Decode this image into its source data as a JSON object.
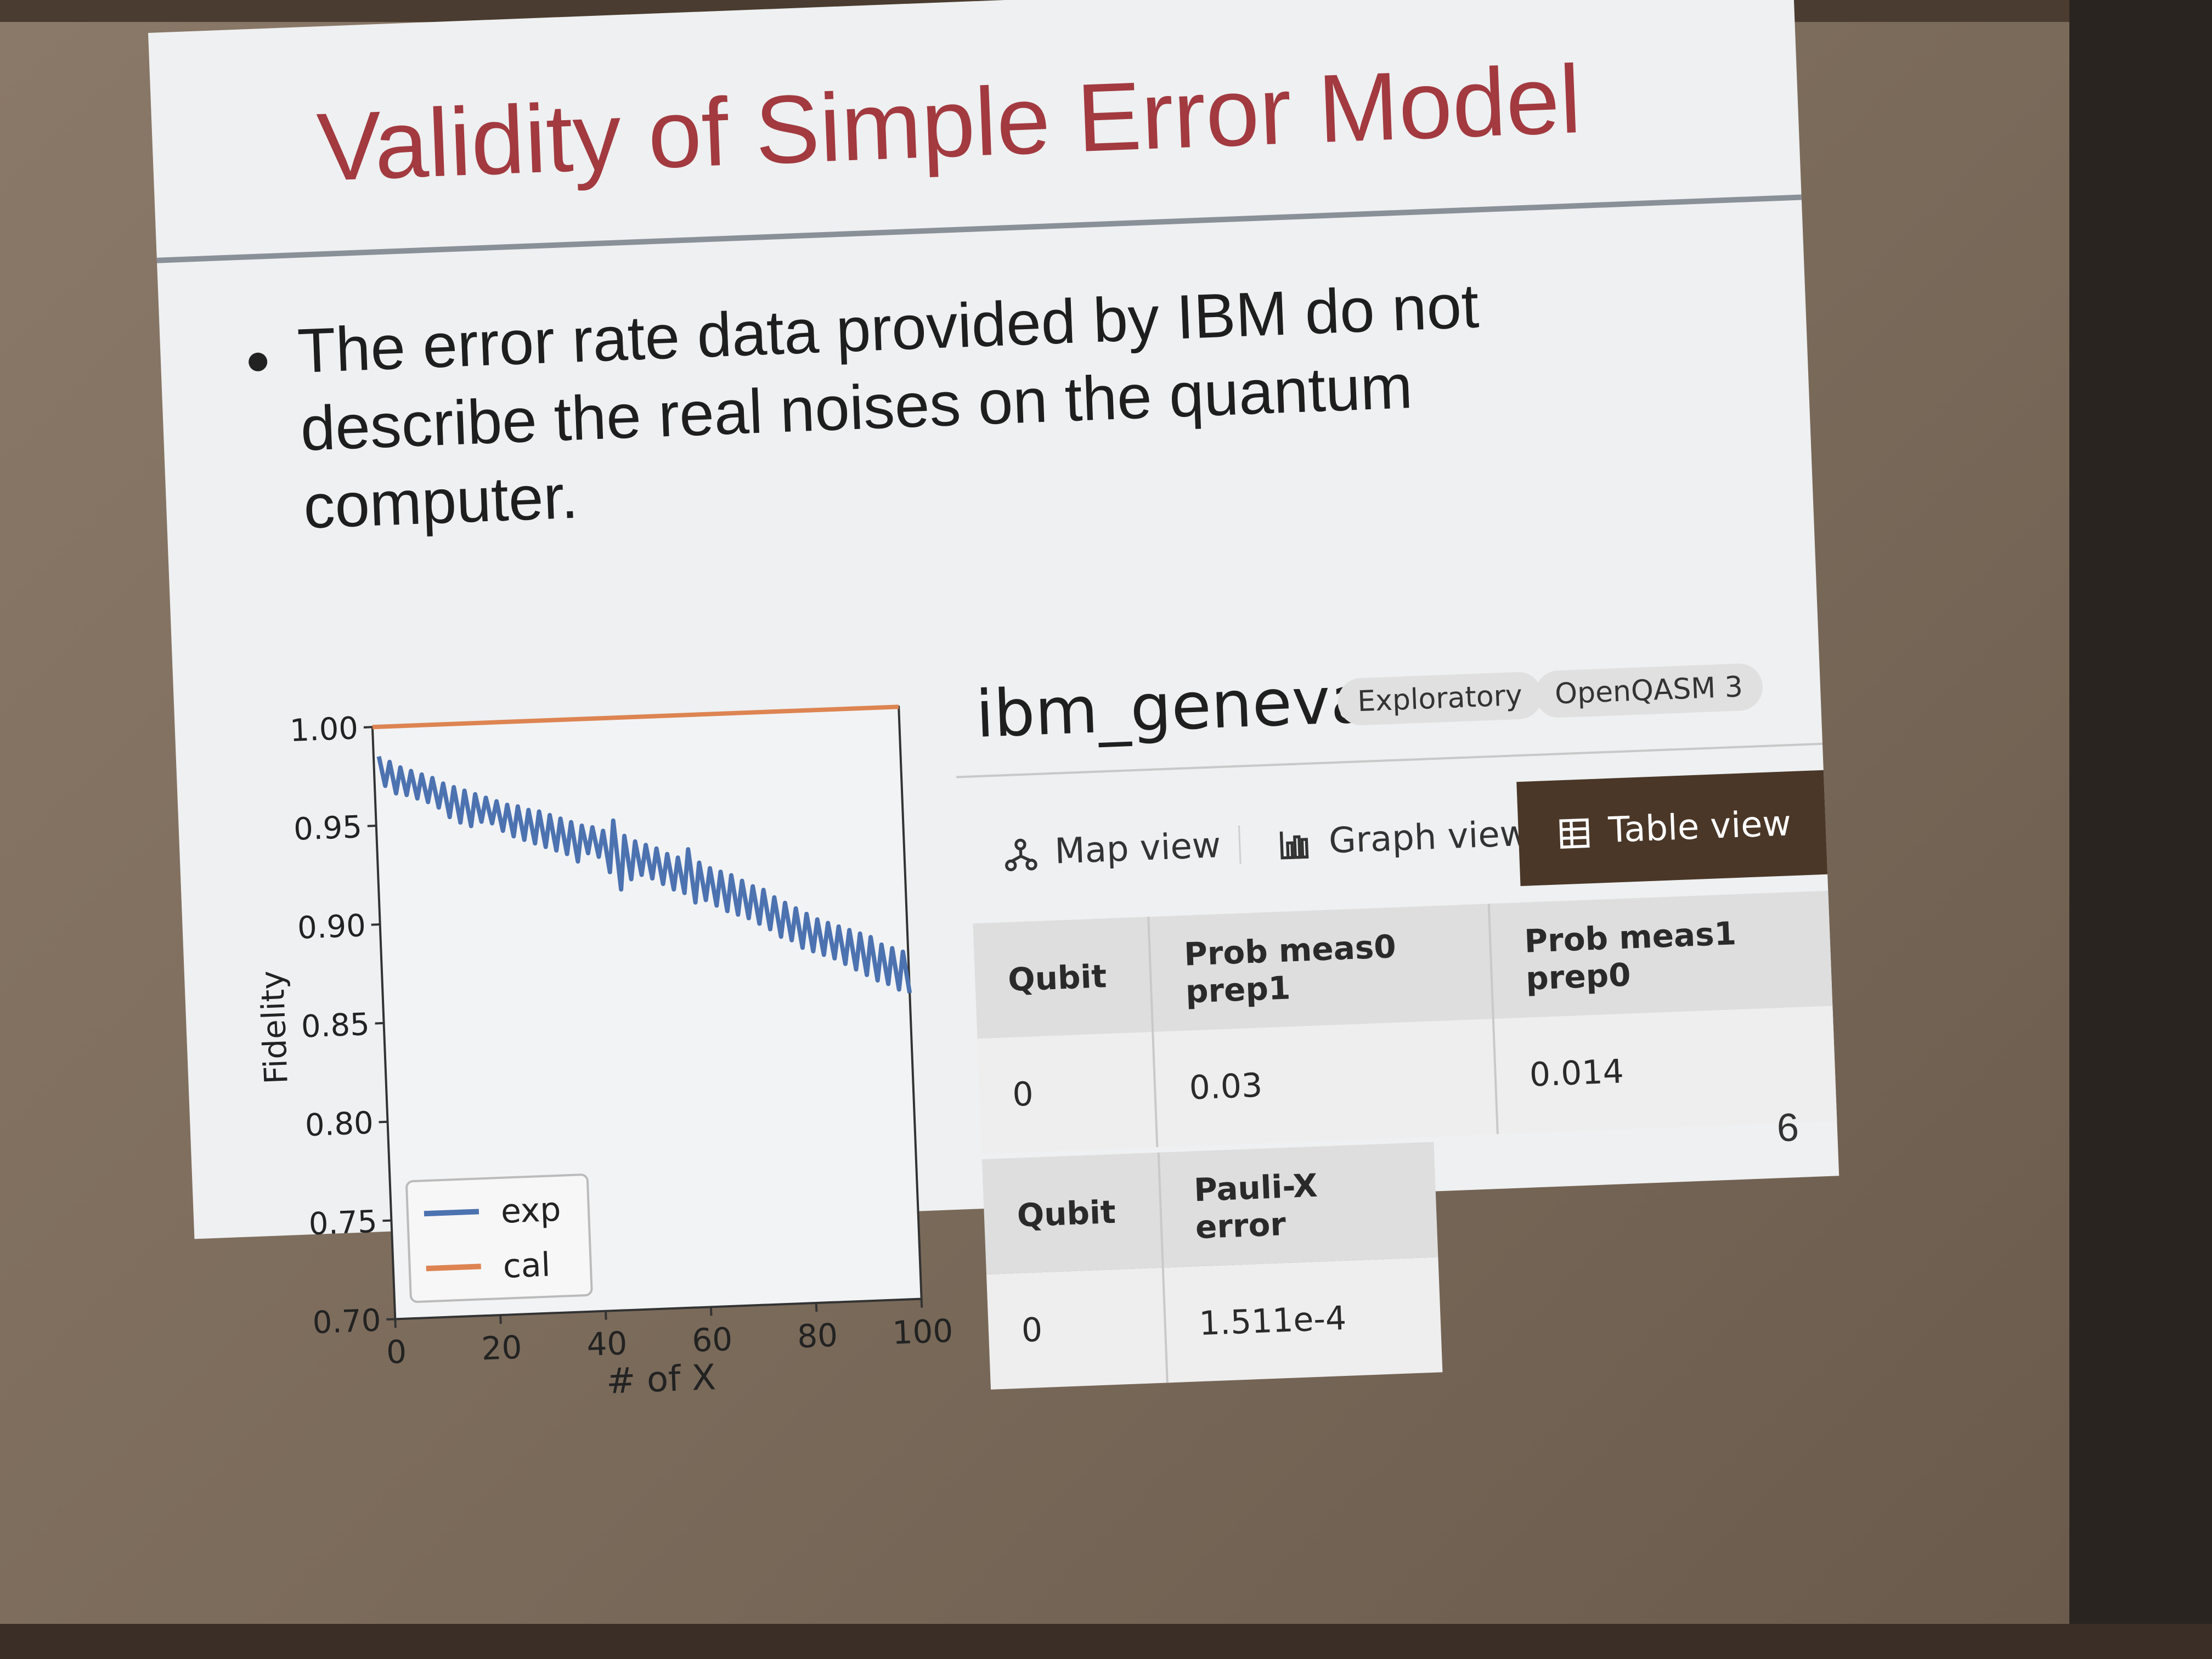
{
  "slide": {
    "title": "Validity of Simple Error Model",
    "bullet": "The error rate data provided by IBM do not describe the real noises on the quantum computer.",
    "page_number": "6"
  },
  "chart_data": {
    "type": "line",
    "xlabel": "# of X",
    "ylabel": "Fidelity",
    "xlim": [
      0,
      100
    ],
    "ylim": [
      0.7,
      1.0
    ],
    "xticks": [
      "0",
      "20",
      "40",
      "60",
      "80",
      "100"
    ],
    "yticks": [
      "0.70",
      "0.75",
      "0.80",
      "0.85",
      "0.90",
      "0.95",
      "1.00"
    ],
    "legend_position": "lower-left",
    "series": [
      {
        "name": "exp",
        "color": "#4c72b0",
        "x": [
          1,
          2,
          3,
          4,
          5,
          6,
          7,
          8,
          9,
          10,
          11,
          12,
          13,
          14,
          15,
          16,
          17,
          18,
          19,
          20,
          21,
          22,
          23,
          24,
          25,
          26,
          27,
          28,
          29,
          30,
          31,
          32,
          33,
          34,
          35,
          36,
          37,
          38,
          39,
          40,
          41,
          42,
          43,
          44,
          45,
          46,
          47,
          48,
          49,
          50,
          51,
          52,
          53,
          54,
          55,
          56,
          57,
          58,
          59,
          60,
          61,
          62,
          63,
          64,
          65,
          66,
          67,
          68,
          69,
          70,
          71,
          72,
          73,
          74,
          75,
          76,
          77,
          78,
          79,
          80,
          81,
          82,
          83,
          84,
          85,
          86,
          87,
          88,
          89,
          90,
          91,
          92,
          93,
          94,
          95,
          96,
          97,
          98,
          99,
          100
        ],
        "y": [
          0.985,
          0.97,
          0.982,
          0.966,
          0.979,
          0.965,
          0.977,
          0.963,
          0.975,
          0.961,
          0.973,
          0.958,
          0.97,
          0.953,
          0.968,
          0.95,
          0.966,
          0.948,
          0.964,
          0.95,
          0.962,
          0.949,
          0.96,
          0.945,
          0.958,
          0.942,
          0.957,
          0.94,
          0.955,
          0.938,
          0.954,
          0.936,
          0.952,
          0.934,
          0.95,
          0.932,
          0.948,
          0.928,
          0.946,
          0.932,
          0.945,
          0.93,
          0.943,
          0.922,
          0.948,
          0.913,
          0.94,
          0.918,
          0.937,
          0.92,
          0.935,
          0.918,
          0.933,
          0.915,
          0.93,
          0.912,
          0.928,
          0.91,
          0.932,
          0.905,
          0.925,
          0.906,
          0.922,
          0.903,
          0.92,
          0.9,
          0.918,
          0.898,
          0.915,
          0.896,
          0.912,
          0.893,
          0.91,
          0.89,
          0.906,
          0.886,
          0.903,
          0.884,
          0.9,
          0.88,
          0.897,
          0.878,
          0.894,
          0.876,
          0.892,
          0.874,
          0.89,
          0.871,
          0.888,
          0.868,
          0.886,
          0.865,
          0.884,
          0.862,
          0.88,
          0.86,
          0.878,
          0.857,
          0.876,
          0.855
        ]
      },
      {
        "name": "cal",
        "color": "#dd8452",
        "x": [
          0,
          100
        ],
        "y": [
          1.0,
          1.0
        ]
      }
    ]
  },
  "panel": {
    "device_name": "ibm_geneva",
    "tags": [
      "Exploratory",
      "OpenQASM 3"
    ],
    "tabs": {
      "map": "Map view",
      "graph": "Graph view",
      "table": "Table view"
    },
    "readout_table": {
      "headers": [
        "Qubit",
        "Prob meas0 prep1",
        "Prob meas1 prep0"
      ],
      "row": [
        "0",
        "0.03",
        "0.014"
      ]
    },
    "pauli_table": {
      "headers": [
        "Qubit",
        "Pauli-X error"
      ],
      "row": [
        "0",
        "1.511e-4"
      ]
    }
  }
}
